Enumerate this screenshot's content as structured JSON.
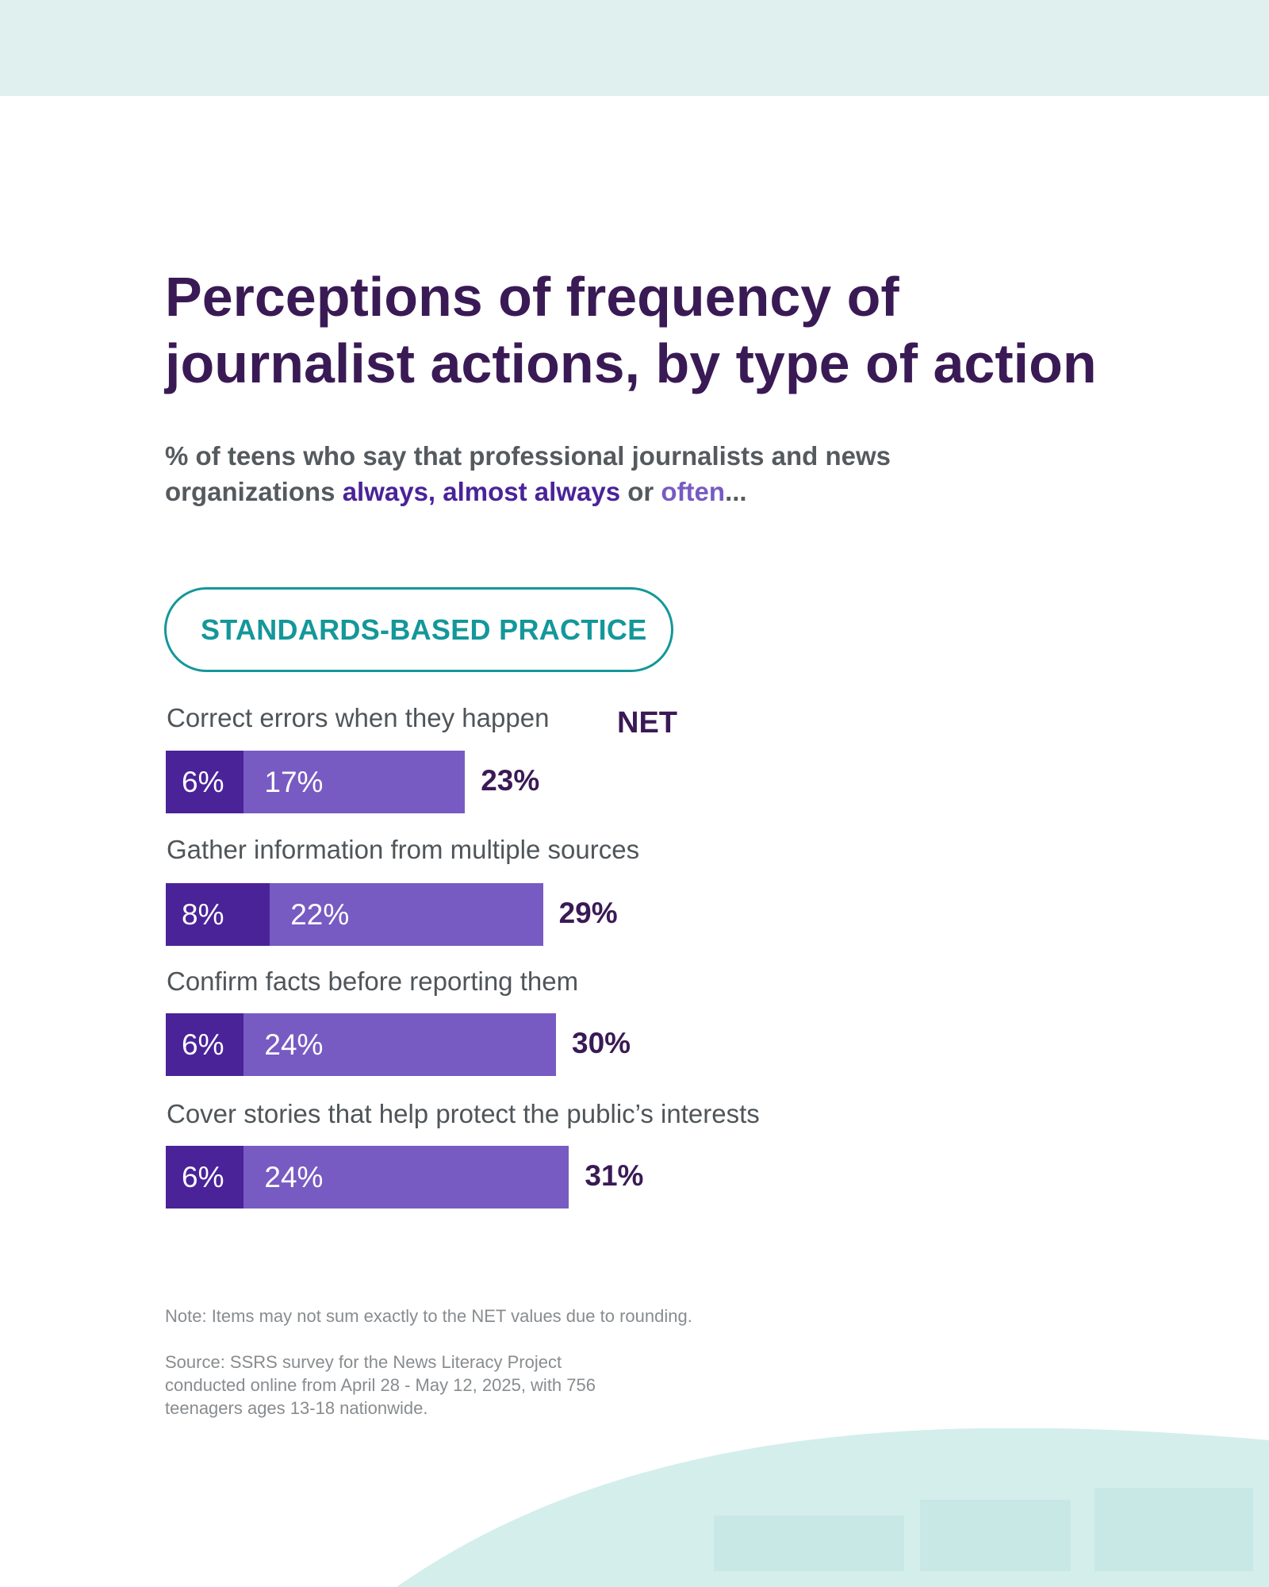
{
  "title": "Perceptions of frequency of journalist actions, by type of action",
  "subtitle": {
    "prefix": "% of teens who say that professional journalists and news organizations ",
    "highlight1": "always, almost always",
    "middle": " or ",
    "highlight2": "often",
    "suffix": "..."
  },
  "section_label": "STANDARDS-BASED PRACTICE",
  "net_header": "NET",
  "note": "Note: Items may not sum exactly to the NET values due to rounding.",
  "source": "Source: SSRS survey for the News Literacy Project conducted online from April 28 - May 12, 2025, with 756 teenagers ages 13-18 nationwide.",
  "colors": {
    "always_almost_always": "#4a2399",
    "often": "#775bc2",
    "title": "#3a1a55",
    "accent": "#14979a",
    "band": "#dff0ef"
  },
  "chart_data": {
    "type": "bar",
    "orientation": "horizontal",
    "stacked": true,
    "categories": [
      "Correct errors when they happen",
      "Gather information from multiple sources",
      "Confirm facts before reporting them",
      "Cover stories that help protect the public’s interests"
    ],
    "series": [
      {
        "name": "always, almost always",
        "values": [
          6,
          8,
          6,
          6
        ],
        "labels": [
          "6%",
          "8%",
          "6%",
          "6%"
        ]
      },
      {
        "name": "often",
        "values": [
          17,
          22,
          24,
          24
        ],
        "labels": [
          "17%",
          "22%",
          "24%",
          "24%"
        ]
      }
    ],
    "net": [
      23,
      29,
      30,
      31
    ],
    "net_labels": [
      "23%",
      "29%",
      "30%",
      "31%"
    ]
  }
}
